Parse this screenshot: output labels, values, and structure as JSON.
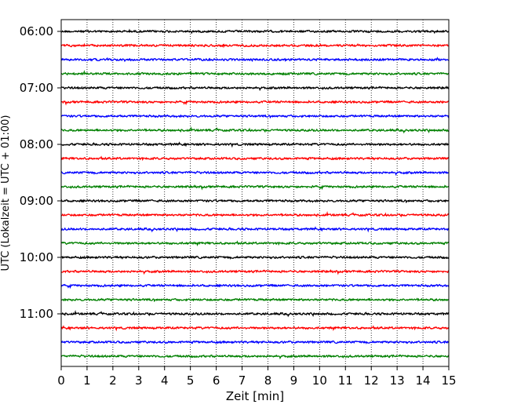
{
  "chart_data": {
    "type": "line",
    "title": "",
    "xlabel": "Zeit  [min]",
    "ylabel": "UTC (Lokalzeit = UTC + 01:00)",
    "xlim": [
      0,
      15
    ],
    "x_ticks": [
      "0",
      "1",
      "2",
      "3",
      "4",
      "5",
      "6",
      "7",
      "8",
      "9",
      "10",
      "11",
      "12",
      "13",
      "14",
      "15"
    ],
    "y_ticks": [
      "06:00",
      "07:00",
      "08:00",
      "09:00",
      "10:00",
      "11:00"
    ],
    "grid": "vertical dotted",
    "legend": "none",
    "trace_interval_minutes": 15,
    "start_time": "06:00",
    "trace_count": 24,
    "trace_colors": [
      "#000000",
      "#ff0000",
      "#0000ff",
      "#008000"
    ]
  }
}
